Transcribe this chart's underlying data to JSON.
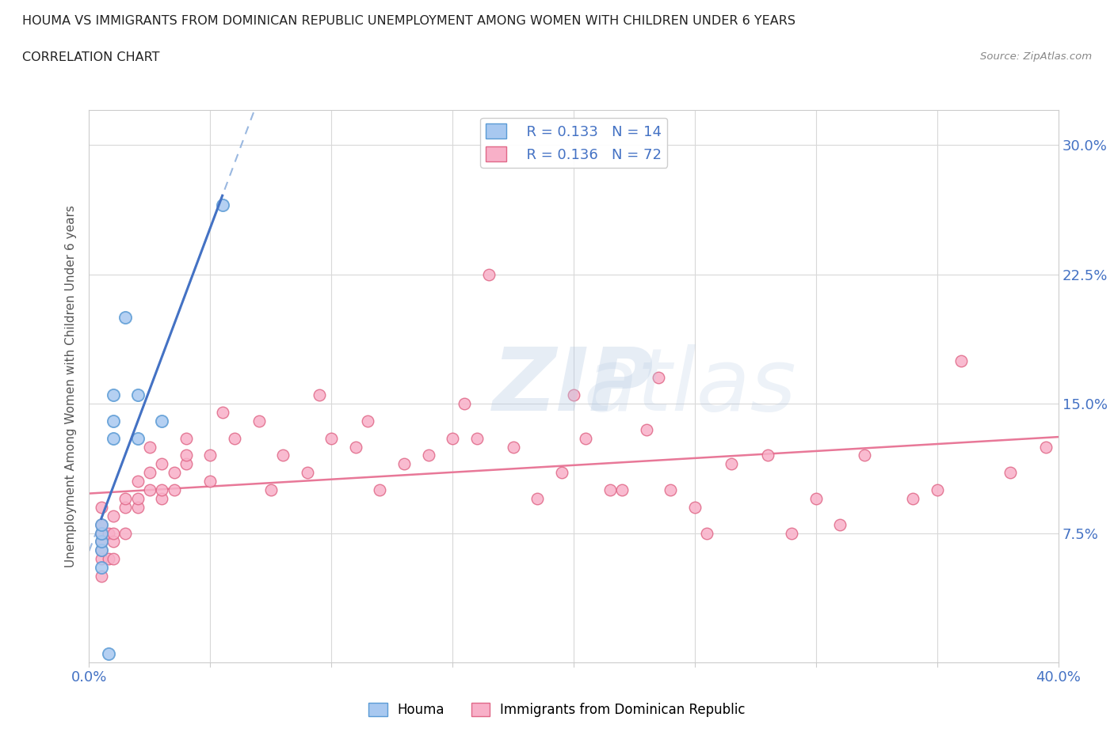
{
  "title_line1": "HOUMA VS IMMIGRANTS FROM DOMINICAN REPUBLIC UNEMPLOYMENT AMONG WOMEN WITH CHILDREN UNDER 6 YEARS",
  "title_line2": "CORRELATION CHART",
  "source_text": "Source: ZipAtlas.com",
  "ylabel": "Unemployment Among Women with Children Under 6 years",
  "xlim": [
    0.0,
    0.4
  ],
  "ylim": [
    0.0,
    0.32
  ],
  "ytick_values": [
    0.075,
    0.15,
    0.225,
    0.3
  ],
  "ytick_labels": [
    "7.5%",
    "15.0%",
    "22.5%",
    "30.0%"
  ],
  "houma_color": "#a8c8f0",
  "houma_edge_color": "#5b9bd5",
  "immigrant_color": "#f8b0c8",
  "immigrant_edge_color": "#e06888",
  "trend_houma_color": "#4472c4",
  "trend_houma_dash_color": "#9ab8e0",
  "trend_immigrant_color": "#e87898",
  "legend_R_houma": "R = 0.133",
  "legend_N_houma": "N = 14",
  "legend_R_immigrant": "R = 0.136",
  "legend_N_immigrant": "N = 72",
  "houma_x": [
    0.005,
    0.005,
    0.005,
    0.005,
    0.005,
    0.008,
    0.01,
    0.01,
    0.01,
    0.015,
    0.02,
    0.02,
    0.03,
    0.055
  ],
  "houma_y": [
    0.055,
    0.065,
    0.07,
    0.075,
    0.08,
    0.005,
    0.13,
    0.14,
    0.155,
    0.2,
    0.13,
    0.155,
    0.14,
    0.265
  ],
  "immigrant_x": [
    0.005,
    0.005,
    0.005,
    0.005,
    0.005,
    0.005,
    0.005,
    0.008,
    0.008,
    0.01,
    0.01,
    0.01,
    0.01,
    0.015,
    0.015,
    0.015,
    0.02,
    0.02,
    0.02,
    0.025,
    0.025,
    0.025,
    0.03,
    0.03,
    0.03,
    0.035,
    0.035,
    0.04,
    0.04,
    0.04,
    0.05,
    0.05,
    0.055,
    0.06,
    0.07,
    0.075,
    0.08,
    0.09,
    0.095,
    0.1,
    0.11,
    0.115,
    0.12,
    0.13,
    0.14,
    0.15,
    0.155,
    0.16,
    0.165,
    0.175,
    0.185,
    0.195,
    0.2,
    0.205,
    0.215,
    0.22,
    0.23,
    0.235,
    0.24,
    0.25,
    0.255,
    0.265,
    0.28,
    0.29,
    0.3,
    0.31,
    0.32,
    0.34,
    0.35,
    0.36,
    0.38,
    0.395
  ],
  "immigrant_y": [
    0.05,
    0.06,
    0.065,
    0.07,
    0.075,
    0.08,
    0.09,
    0.06,
    0.075,
    0.06,
    0.07,
    0.075,
    0.085,
    0.075,
    0.09,
    0.095,
    0.09,
    0.095,
    0.105,
    0.1,
    0.11,
    0.125,
    0.095,
    0.1,
    0.115,
    0.1,
    0.11,
    0.115,
    0.12,
    0.13,
    0.105,
    0.12,
    0.145,
    0.13,
    0.14,
    0.1,
    0.12,
    0.11,
    0.155,
    0.13,
    0.125,
    0.14,
    0.1,
    0.115,
    0.12,
    0.13,
    0.15,
    0.13,
    0.225,
    0.125,
    0.095,
    0.11,
    0.155,
    0.13,
    0.1,
    0.1,
    0.135,
    0.165,
    0.1,
    0.09,
    0.075,
    0.115,
    0.12,
    0.075,
    0.095,
    0.08,
    0.12,
    0.095,
    0.1,
    0.175,
    0.11,
    0.125
  ],
  "grid_color": "#d8d8d8",
  "spine_color": "#cccccc",
  "tick_color": "#4472c4"
}
